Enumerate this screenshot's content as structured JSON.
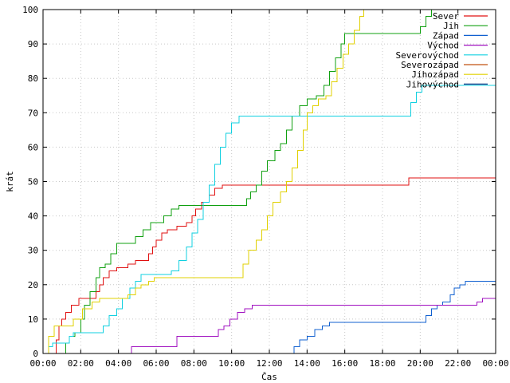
{
  "chart_data": {
    "type": "line",
    "xlabel": "Čas",
    "ylabel": "krát",
    "xlim": [
      0,
      24
    ],
    "ylim": [
      0,
      100
    ],
    "grid": true,
    "legend_position": "top-right",
    "x_ticks": [
      "00:00",
      "02:00",
      "04:00",
      "06:00",
      "08:00",
      "10:00",
      "12:00",
      "14:00",
      "16:00",
      "18:00",
      "20:00",
      "22:00",
      "00:00"
    ],
    "y_ticks": [
      "0",
      "10",
      "20",
      "30",
      "40",
      "50",
      "60",
      "70",
      "80",
      "90",
      "100"
    ],
    "series": [
      {
        "name": "Sever",
        "color": "#e01010",
        "points": [
          [
            0.5,
            0
          ],
          [
            0.7,
            4
          ],
          [
            0.85,
            8
          ],
          [
            1.0,
            10
          ],
          [
            1.2,
            12
          ],
          [
            1.5,
            14
          ],
          [
            1.9,
            16
          ],
          [
            2.6,
            16
          ],
          [
            2.8,
            18
          ],
          [
            3.0,
            20
          ],
          [
            3.2,
            22
          ],
          [
            3.5,
            24
          ],
          [
            3.9,
            25
          ],
          [
            4.3,
            25
          ],
          [
            4.5,
            26
          ],
          [
            4.9,
            27
          ],
          [
            5.4,
            27
          ],
          [
            5.6,
            29
          ],
          [
            5.8,
            31
          ],
          [
            6.0,
            33
          ],
          [
            6.3,
            35
          ],
          [
            6.6,
            36
          ],
          [
            7.1,
            37
          ],
          [
            7.6,
            38
          ],
          [
            7.9,
            40
          ],
          [
            8.1,
            42
          ],
          [
            8.4,
            44
          ],
          [
            8.8,
            46
          ],
          [
            9.1,
            48
          ],
          [
            9.5,
            49
          ],
          [
            10.0,
            49
          ],
          [
            11.0,
            49
          ],
          [
            12.0,
            49
          ],
          [
            13.0,
            49
          ],
          [
            14.0,
            49
          ],
          [
            15.0,
            49
          ],
          [
            16.0,
            49
          ],
          [
            17.0,
            49
          ],
          [
            18.0,
            49
          ],
          [
            19.3,
            49
          ],
          [
            19.4,
            51
          ],
          [
            20.0,
            51
          ],
          [
            24.0,
            51
          ]
        ]
      },
      {
        "name": "Jih",
        "color": "#10a010",
        "points": [
          [
            0.5,
            0
          ],
          [
            1.1,
            0
          ],
          [
            1.2,
            3
          ],
          [
            1.4,
            5
          ],
          [
            1.7,
            6
          ],
          [
            2.0,
            10
          ],
          [
            2.2,
            14
          ],
          [
            2.5,
            18
          ],
          [
            2.8,
            22
          ],
          [
            3.0,
            25
          ],
          [
            3.3,
            26
          ],
          [
            3.6,
            29
          ],
          [
            3.9,
            32
          ],
          [
            4.5,
            32
          ],
          [
            4.9,
            34
          ],
          [
            5.3,
            36
          ],
          [
            5.7,
            38
          ],
          [
            6.1,
            38
          ],
          [
            6.4,
            40
          ],
          [
            6.8,
            42
          ],
          [
            7.2,
            43
          ],
          [
            8.0,
            43
          ],
          [
            9.0,
            43
          ],
          [
            10.5,
            43
          ],
          [
            10.8,
            45
          ],
          [
            11.0,
            47
          ],
          [
            11.3,
            49
          ],
          [
            11.6,
            53
          ],
          [
            11.9,
            56
          ],
          [
            12.3,
            59
          ],
          [
            12.6,
            61
          ],
          [
            12.9,
            65
          ],
          [
            13.2,
            69
          ],
          [
            13.6,
            72
          ],
          [
            14.0,
            74
          ],
          [
            14.5,
            75
          ],
          [
            14.9,
            78
          ],
          [
            15.2,
            82
          ],
          [
            15.5,
            86
          ],
          [
            15.8,
            90
          ],
          [
            16.0,
            93
          ],
          [
            17.0,
            93
          ],
          [
            18.0,
            93
          ],
          [
            19.3,
            93
          ],
          [
            19.6,
            93
          ],
          [
            20.0,
            95
          ],
          [
            20.3,
            98
          ],
          [
            20.6,
            100
          ]
        ]
      },
      {
        "name": "Západ",
        "color": "#1060d0",
        "points": [
          [
            0,
            0
          ],
          [
            13.2,
            0
          ],
          [
            13.3,
            2
          ],
          [
            13.6,
            4
          ],
          [
            14.0,
            5
          ],
          [
            14.4,
            7
          ],
          [
            14.8,
            8
          ],
          [
            15.2,
            9
          ],
          [
            16.0,
            9
          ],
          [
            17.0,
            9
          ],
          [
            18.0,
            9
          ],
          [
            19.0,
            9
          ],
          [
            20.1,
            9
          ],
          [
            20.3,
            11
          ],
          [
            20.6,
            13
          ],
          [
            20.9,
            14
          ],
          [
            21.2,
            15
          ],
          [
            21.6,
            17
          ],
          [
            21.8,
            19
          ],
          [
            22.1,
            20
          ],
          [
            22.4,
            21
          ],
          [
            24.0,
            21
          ]
        ]
      },
      {
        "name": "Východ",
        "color": "#a010c0",
        "points": [
          [
            0,
            0
          ],
          [
            4.6,
            0
          ],
          [
            4.7,
            2
          ],
          [
            5.5,
            2
          ],
          [
            6.5,
            2
          ],
          [
            7.0,
            2
          ],
          [
            7.1,
            5
          ],
          [
            8.0,
            5
          ],
          [
            9.1,
            5
          ],
          [
            9.3,
            7
          ],
          [
            9.6,
            8
          ],
          [
            9.9,
            10
          ],
          [
            10.3,
            12
          ],
          [
            10.7,
            13
          ],
          [
            11.1,
            14
          ],
          [
            12.0,
            14
          ],
          [
            14.0,
            14
          ],
          [
            16.0,
            14
          ],
          [
            18.0,
            14
          ],
          [
            20.0,
            14
          ],
          [
            22.5,
            14
          ],
          [
            23.0,
            15
          ],
          [
            23.3,
            16
          ],
          [
            24.0,
            16
          ]
        ]
      },
      {
        "name": "Severovýchod",
        "color": "#10d0e0",
        "points": [
          [
            0,
            0
          ],
          [
            0.15,
            0
          ],
          [
            0.3,
            2
          ],
          [
            0.5,
            3
          ],
          [
            1.0,
            3
          ],
          [
            1.4,
            5
          ],
          [
            1.6,
            6
          ],
          [
            2.5,
            6
          ],
          [
            3.0,
            6
          ],
          [
            3.2,
            8
          ],
          [
            3.5,
            11
          ],
          [
            3.9,
            13
          ],
          [
            4.2,
            16
          ],
          [
            4.6,
            19
          ],
          [
            4.9,
            21
          ],
          [
            5.2,
            23
          ],
          [
            6.0,
            23
          ],
          [
            6.5,
            23
          ],
          [
            6.8,
            24
          ],
          [
            7.2,
            27
          ],
          [
            7.6,
            31
          ],
          [
            7.9,
            35
          ],
          [
            8.2,
            39
          ],
          [
            8.5,
            44
          ],
          [
            8.8,
            49
          ],
          [
            9.1,
            55
          ],
          [
            9.4,
            60
          ],
          [
            9.7,
            64
          ],
          [
            10.0,
            67
          ],
          [
            10.4,
            69
          ],
          [
            11.0,
            69
          ],
          [
            12.0,
            69
          ],
          [
            13.0,
            69
          ],
          [
            14.0,
            69
          ],
          [
            15.0,
            69
          ],
          [
            16.0,
            69
          ],
          [
            17.0,
            69
          ],
          [
            18.0,
            69
          ],
          [
            19.2,
            69
          ],
          [
            19.5,
            73
          ],
          [
            19.8,
            76
          ],
          [
            20.1,
            78
          ],
          [
            21.0,
            78
          ],
          [
            22.0,
            78
          ],
          [
            24.0,
            78
          ]
        ]
      },
      {
        "name": "Severozápad",
        "color": "#c05010",
        "points": []
      },
      {
        "name": "Jihozápad",
        "color": "#e0d000",
        "points": [
          [
            0,
            0
          ],
          [
            0.3,
            5
          ],
          [
            0.6,
            8
          ],
          [
            1.0,
            8
          ],
          [
            1.6,
            10
          ],
          [
            2.1,
            13
          ],
          [
            2.6,
            15
          ],
          [
            3.0,
            16
          ],
          [
            3.5,
            16
          ],
          [
            4.2,
            16
          ],
          [
            4.5,
            17
          ],
          [
            4.9,
            19
          ],
          [
            5.2,
            20
          ],
          [
            5.6,
            21
          ],
          [
            5.9,
            22
          ],
          [
            6.5,
            22
          ],
          [
            7.5,
            22
          ],
          [
            8.5,
            22
          ],
          [
            9.5,
            22
          ],
          [
            10.4,
            22
          ],
          [
            10.6,
            26
          ],
          [
            10.9,
            30
          ],
          [
            11.3,
            33
          ],
          [
            11.6,
            36
          ],
          [
            11.9,
            40
          ],
          [
            12.2,
            44
          ],
          [
            12.6,
            47
          ],
          [
            12.9,
            50
          ],
          [
            13.2,
            54
          ],
          [
            13.5,
            59
          ],
          [
            13.8,
            65
          ],
          [
            14.0,
            70
          ],
          [
            14.3,
            72
          ],
          [
            14.6,
            74
          ],
          [
            15.0,
            75
          ],
          [
            15.3,
            79
          ],
          [
            15.6,
            83
          ],
          [
            15.9,
            87
          ],
          [
            16.2,
            90
          ],
          [
            16.5,
            94
          ],
          [
            16.8,
            98
          ],
          [
            17.0,
            100
          ]
        ]
      },
      {
        "name": "Jihovýchod",
        "color": "#003080",
        "points": []
      }
    ]
  }
}
